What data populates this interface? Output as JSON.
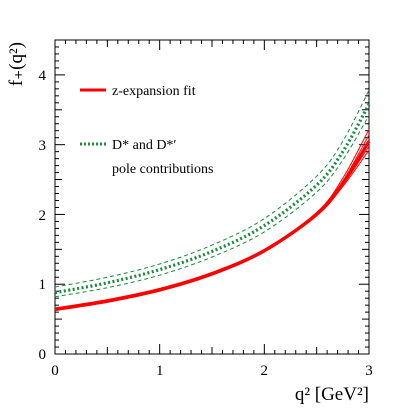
{
  "chart_data": {
    "type": "line",
    "xlabel": "q² [GeV²]",
    "ylabel": "f₊(q²)",
    "xlim": [
      0,
      3
    ],
    "ylim": [
      0,
      4.5
    ],
    "x_ticks": [
      "0",
      "1",
      "2",
      "3"
    ],
    "y_ticks": [
      "0",
      "1",
      "2",
      "3",
      "4"
    ],
    "legend_position": "top-left",
    "legend": [
      {
        "label": "z-expansion fit",
        "style": "solid",
        "color": "#ff0000"
      },
      {
        "label": "D* and D*′",
        "style": "dotted",
        "color": "#1a8a3c"
      },
      {
        "label": "pole contributions",
        "style": "none",
        "color": ""
      }
    ],
    "colors": {
      "fit": "#ff0000",
      "pole": "#1a8a3c"
    },
    "series": [
      {
        "name": "z-expansion fit",
        "x": [
          0,
          0.5,
          1.0,
          1.5,
          2.0,
          2.5,
          2.75,
          3.0
        ],
        "values": [
          0.64,
          0.76,
          0.92,
          1.15,
          1.48,
          2.0,
          2.45,
          3.05
        ]
      },
      {
        "x": [
          0,
          0.5,
          1.0,
          1.5,
          2.0,
          2.5,
          2.75,
          3.0
        ],
        "values": [
          0.66,
          0.78,
          0.94,
          1.17,
          1.5,
          2.03,
          2.52,
          3.22
        ]
      },
      {
        "x": [
          0,
          0.5,
          1.0,
          1.5,
          2.0,
          2.5,
          2.75,
          3.0
        ],
        "values": [
          0.62,
          0.74,
          0.9,
          1.13,
          1.46,
          1.98,
          2.4,
          2.92
        ]
      },
      {
        "x": [
          0,
          0.5,
          1.0,
          1.5,
          2.0,
          2.5,
          2.75,
          3.0
        ],
        "values": [
          0.65,
          0.77,
          0.93,
          1.16,
          1.49,
          2.02,
          2.48,
          3.14
        ]
      },
      {
        "x": [
          0,
          0.5,
          1.0,
          1.5,
          2.0,
          2.5,
          2.75,
          3.0
        ],
        "values": [
          0.63,
          0.75,
          0.91,
          1.14,
          1.47,
          1.99,
          2.42,
          2.98
        ]
      },
      {
        "name": "D* and D*′",
        "x": [
          0,
          0.5,
          1.0,
          1.5,
          2.0,
          2.5,
          2.75,
          3.0
        ],
        "values": [
          0.88,
          1.02,
          1.21,
          1.47,
          1.84,
          2.42,
          2.9,
          3.58
        ]
      },
      {
        "x": [
          0,
          0.5,
          1.0,
          1.5,
          2.0,
          2.5,
          2.75,
          3.0
        ],
        "values": [
          0.96,
          1.1,
          1.29,
          1.56,
          1.94,
          2.55,
          3.05,
          3.78
        ]
      },
      {
        "x": [
          0,
          0.5,
          1.0,
          1.5,
          2.0,
          2.5,
          2.75,
          3.0
        ],
        "values": [
          0.82,
          0.95,
          1.13,
          1.39,
          1.75,
          2.32,
          2.78,
          3.42
        ]
      }
    ]
  }
}
